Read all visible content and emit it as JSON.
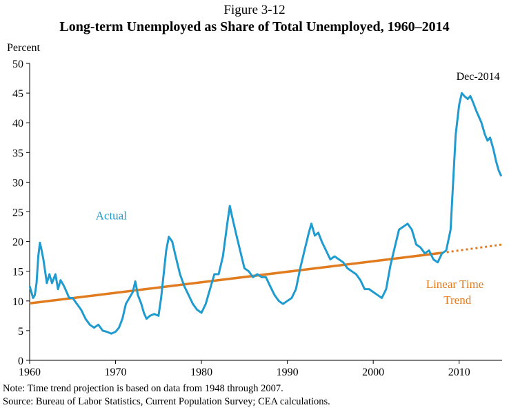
{
  "figure_label": "Figure 3-12",
  "footer": {
    "note": "Note: Time trend projection is based on data from 1948 through 2007.",
    "source": "Source: Bureau of Labor Statistics, Current Population Survey; CEA calculations."
  },
  "colors": {
    "actual": "#1f9bcf",
    "trend": "#e07b20",
    "axis": "#000000"
  },
  "chart_data": {
    "type": "line",
    "title": "Long-term Unemployed as Share of Total Unemployed, 1960–2014",
    "ylabel": "Percent",
    "xlabel": "",
    "xlim": [
      1960,
      2015
    ],
    "ylim": [
      0,
      50
    ],
    "x_ticks": [
      "1960",
      "1970",
      "1980",
      "1990",
      "2000",
      "2010"
    ],
    "y_ticks": [
      "0",
      "5",
      "10",
      "15",
      "20",
      "25",
      "30",
      "35",
      "40",
      "45",
      "50"
    ],
    "grid": false,
    "series": [
      {
        "name": "Actual",
        "label": "Actual",
        "x": [
          1960.0,
          1960.2,
          1960.4,
          1960.6,
          1960.8,
          1961.0,
          1961.2,
          1961.4,
          1961.6,
          1961.8,
          1962.0,
          1962.3,
          1962.6,
          1963.0,
          1963.3,
          1963.6,
          1964.0,
          1964.3,
          1964.6,
          1965.0,
          1965.5,
          1966.0,
          1966.5,
          1967.0,
          1967.5,
          1968.0,
          1968.5,
          1969.0,
          1969.5,
          1970.0,
          1970.4,
          1970.8,
          1971.2,
          1971.6,
          1972.0,
          1972.3,
          1972.6,
          1973.0,
          1973.3,
          1973.6,
          1974.0,
          1974.5,
          1975.0,
          1975.3,
          1975.6,
          1975.9,
          1976.2,
          1976.6,
          1977.0,
          1977.5,
          1978.0,
          1978.5,
          1979.0,
          1979.5,
          1980.0,
          1980.5,
          1981.0,
          1981.5,
          1982.0,
          1982.5,
          1983.0,
          1983.3,
          1983.6,
          1984.0,
          1984.5,
          1985.0,
          1985.5,
          1986.0,
          1986.5,
          1987.0,
          1987.5,
          1988.0,
          1988.5,
          1989.0,
          1989.5,
          1990.0,
          1990.5,
          1991.0,
          1991.5,
          1992.0,
          1992.5,
          1992.8,
          1993.2,
          1993.6,
          1994.0,
          1994.5,
          1995.0,
          1995.5,
          1996.0,
          1996.5,
          1997.0,
          1997.5,
          1998.0,
          1998.5,
          1999.0,
          1999.5,
          2000.0,
          2000.5,
          2001.0,
          2001.5,
          2002.0,
          2002.5,
          2003.0,
          2003.5,
          2004.0,
          2004.5,
          2005.0,
          2005.5,
          2006.0,
          2006.5,
          2007.0,
          2007.5,
          2008.0,
          2008.5,
          2009.0,
          2009.3,
          2009.6,
          2010.0,
          2010.3,
          2010.6,
          2011.0,
          2011.3,
          2011.6,
          2012.0,
          2012.3,
          2012.6,
          2013.0,
          2013.3,
          2013.6,
          2014.0,
          2014.3,
          2014.6,
          2014.9
        ],
        "y": [
          12.5,
          11.5,
          10.5,
          11.0,
          13.0,
          17.5,
          19.8,
          18.5,
          17.0,
          15.0,
          13.0,
          14.5,
          13.0,
          14.5,
          12.0,
          13.5,
          12.5,
          11.5,
          10.5,
          10.5,
          9.5,
          8.5,
          7.0,
          6.0,
          5.5,
          6.0,
          5.0,
          4.8,
          4.5,
          4.8,
          5.5,
          7.0,
          9.5,
          10.5,
          11.5,
          13.3,
          11.0,
          9.5,
          8.0,
          7.0,
          7.5,
          7.8,
          7.5,
          10.5,
          14.5,
          18.5,
          20.8,
          20.0,
          17.5,
          14.5,
          12.5,
          11.0,
          9.5,
          8.5,
          8.0,
          9.5,
          12.0,
          14.5,
          14.5,
          17.5,
          23.0,
          26.0,
          24.0,
          21.5,
          18.5,
          15.5,
          15.0,
          14.0,
          14.5,
          14.0,
          14.0,
          12.5,
          11.0,
          10.0,
          9.5,
          10.0,
          10.5,
          12.0,
          15.5,
          18.5,
          21.5,
          23.0,
          21.0,
          21.5,
          20.0,
          18.5,
          17.0,
          17.5,
          17.0,
          16.5,
          15.5,
          15.0,
          14.5,
          13.5,
          12.0,
          12.0,
          11.5,
          11.0,
          10.5,
          12.0,
          16.0,
          19.0,
          22.0,
          22.5,
          23.0,
          22.0,
          19.5,
          19.0,
          18.0,
          18.5,
          17.0,
          16.5,
          18.0,
          18.5,
          22.0,
          30.0,
          38.0,
          43.0,
          45.0,
          44.5,
          44.0,
          44.5,
          43.5,
          42.0,
          41.0,
          40.0,
          38.0,
          37.0,
          37.5,
          35.5,
          33.5,
          32.0,
          31.0
        ]
      },
      {
        "name": "Linear Time Trend",
        "label_lines": [
          "Linear Time",
          "Trend"
        ],
        "x": [
          1960,
          2008
        ],
        "y": [
          9.6,
          18.1
        ],
        "projection_x": [
          2008,
          2015
        ],
        "projection_y": [
          18.1,
          19.5
        ]
      }
    ],
    "annotations": [
      {
        "text": "Dec-2014",
        "x": 2014.9,
        "y": 31.0
      }
    ]
  }
}
